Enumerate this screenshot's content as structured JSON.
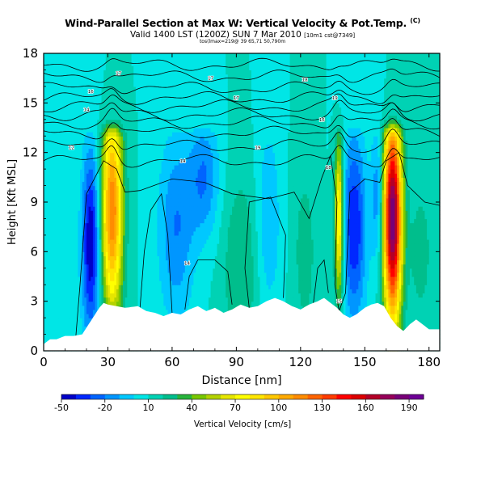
{
  "header": {
    "title": "Wind-Parallel Section at Max W: Vertical Velocity & Pot.Temp.",
    "title_mark": "(C)",
    "valid_line": "Valid 1400 LST (1200Z) SUN 7 Mar 2010",
    "valid_suffix": "[10m1 cst@7349]",
    "small_line": "tos(lmax=219@ 39 65,71 50,790m"
  },
  "chart_data": {
    "type": "heatmap",
    "title": "Wind-Parallel Section at Max W: Vertical Velocity & Pot.Temp.",
    "xlabel": "Distance [nm]",
    "ylabel": "Height [Kft MSL]",
    "xlim": [
      0,
      185
    ],
    "ylim": [
      0,
      18
    ],
    "x_ticks": [
      0,
      30,
      60,
      90,
      120,
      150,
      180
    ],
    "y_ticks": [
      0,
      3,
      6,
      9,
      12,
      15,
      18
    ],
    "colorbar": {
      "label": "Vertical Velocity [cm/s]",
      "tick_labels": [
        "-50",
        "-20",
        "10",
        "40",
        "70",
        "100",
        "130",
        "160",
        "190"
      ],
      "levels": [
        -50,
        -40,
        -30,
        -20,
        -10,
        0,
        10,
        20,
        30,
        40,
        50,
        60,
        70,
        80,
        90,
        100,
        110,
        120,
        130,
        140,
        150,
        160,
        170,
        180,
        190,
        200
      ],
      "colors": [
        "#0000c8",
        "#0028ff",
        "#0064ff",
        "#0096ff",
        "#00c8ff",
        "#00e6e6",
        "#00d2b4",
        "#00be8c",
        "#28b43c",
        "#78c800",
        "#b4d200",
        "#e6e600",
        "#ffff00",
        "#ffe600",
        "#ffc800",
        "#ffaa00",
        "#ff8c00",
        "#ff6400",
        "#ff3c00",
        "#ff0000",
        "#dc0000",
        "#b40028",
        "#96005a",
        "#780078",
        "#6e0096"
      ]
    },
    "background_w": 10,
    "updrafts": [
      {
        "x": 32,
        "peak_km": 8.5,
        "halfwidth_nm": 3.5,
        "depth_kft": 4.5,
        "max_w": 120
      },
      {
        "x": 138,
        "peak_km": 8.0,
        "halfwidth_nm": 1.5,
        "depth_kft": 3.5,
        "max_w": 90
      },
      {
        "x": 163,
        "peak_km": 8.0,
        "halfwidth_nm": 3.0,
        "depth_kft": 4.5,
        "max_w": 190
      }
    ],
    "downdrafts": [
      {
        "x": 22,
        "peak_kft": 6.5,
        "halfwidth_nm": 3.0,
        "depth_kft": 4.0,
        "min_w": -50
      },
      {
        "x": 62,
        "peak_kft": 7.5,
        "halfwidth_nm": 6.0,
        "depth_kft": 4.0,
        "min_w": -20
      },
      {
        "x": 75,
        "peak_kft": 10.5,
        "halfwidth_nm": 5.0,
        "depth_kft": 2.5,
        "min_w": -20
      },
      {
        "x": 105,
        "peak_kft": 8.0,
        "halfwidth_nm": 4.0,
        "depth_kft": 4.0,
        "min_w": -10
      },
      {
        "x": 145,
        "peak_kft": 7.5,
        "halfwidth_nm": 4.0,
        "depth_kft": 4.0,
        "min_w": -40
      },
      {
        "x": 156,
        "peak_kft": 9.5,
        "halfwidth_nm": 2.0,
        "depth_kft": 3.0,
        "min_w": -20
      }
    ],
    "green_bands": [
      {
        "x": 92,
        "peak_kft": 5.0,
        "halfwidth_nm": 6.0,
        "depth_kft": 4.0,
        "w": 30
      },
      {
        "x": 122,
        "peak_kft": 6.0,
        "halfwidth_nm": 4.0,
        "depth_kft": 4.0,
        "w": 25
      },
      {
        "x": 176,
        "peak_kft": 6.0,
        "halfwidth_nm": 4.0,
        "depth_kft": 3.0,
        "w": 25
      }
    ],
    "terrain": {
      "x": [
        0,
        3,
        6,
        10,
        14,
        18,
        20,
        23,
        26,
        28,
        30,
        38,
        44,
        48,
        52,
        56,
        60,
        64,
        68,
        72,
        76,
        80,
        84,
        88,
        92,
        96,
        100,
        104,
        108,
        112,
        116,
        120,
        124,
        128,
        131,
        134,
        137,
        140,
        143,
        146,
        150,
        153,
        156,
        159,
        162,
        165,
        168,
        171,
        174,
        177,
        180,
        185
      ],
      "y": [
        0.4,
        0.7,
        0.7,
        0.9,
        0.9,
        1.0,
        1.4,
        2.0,
        2.6,
        2.9,
        2.8,
        2.6,
        2.7,
        2.4,
        2.3,
        2.1,
        2.3,
        2.2,
        2.5,
        2.7,
        2.4,
        2.6,
        2.3,
        2.5,
        2.8,
        2.6,
        2.7,
        3.0,
        3.2,
        3.0,
        2.7,
        2.5,
        2.8,
        3.0,
        3.2,
        2.9,
        2.6,
        2.2,
        2.0,
        2.2,
        2.6,
        2.8,
        2.9,
        2.7,
        2.0,
        1.5,
        1.2,
        1.6,
        1.9,
        1.6,
        1.3,
        1.3
      ]
    },
    "isentrope_labels": [
      "12",
      "14",
      "14",
      "14",
      "15",
      "16",
      "16",
      "17",
      "17",
      "17",
      "18",
      "18",
      "19",
      "19"
    ]
  }
}
